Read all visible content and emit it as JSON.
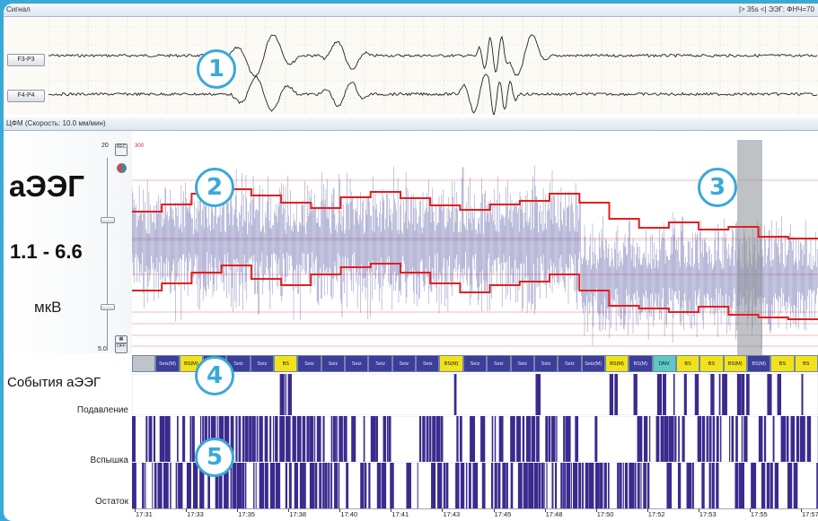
{
  "signal_panel": {
    "title": "Сигнал",
    "status": "|> 35s <|  ЭЭГ: ФНЧ=70",
    "channels": [
      "F3-P3",
      "F4-P4"
    ]
  },
  "cfm_panel": {
    "title": "ЦФМ (Скорость: 10.0 мм/мин)",
    "label": "аЭЭГ",
    "range": "1.1 - 6.6",
    "unit": "мкВ",
    "scale_top": "20",
    "scale_bottom": "5.0",
    "axis_max": "300",
    "btn_top": "REC",
    "btn_bottom": "OFF"
  },
  "events": {
    "label": "События аЭЭГ",
    "items": [
      {
        "label": "",
        "type": "gray"
      },
      {
        "label": "Seiz(M)",
        "type": "blue"
      },
      {
        "label": "BS(M)",
        "type": "yellow"
      },
      {
        "label": "Seiz",
        "type": "blue"
      },
      {
        "label": "Seiz",
        "type": "blue"
      },
      {
        "label": "Seiz",
        "type": "blue"
      },
      {
        "label": "BS",
        "type": "yellow"
      },
      {
        "label": "Seiz",
        "type": "blue"
      },
      {
        "label": "Seiz",
        "type": "blue"
      },
      {
        "label": "Seiz",
        "type": "blue"
      },
      {
        "label": "Seiz",
        "type": "blue"
      },
      {
        "label": "Seiz",
        "type": "blue"
      },
      {
        "label": "Seiz",
        "type": "blue"
      },
      {
        "label": "BS(M)",
        "type": "yellow"
      },
      {
        "label": "Seiz",
        "type": "blue"
      },
      {
        "label": "Seiz",
        "type": "blue"
      },
      {
        "label": "Seiz",
        "type": "blue"
      },
      {
        "label": "Seiz",
        "type": "blue"
      },
      {
        "label": "Seiz",
        "type": "blue"
      },
      {
        "label": "Seiz(M)",
        "type": "blue"
      },
      {
        "label": "BS(M)",
        "type": "yellow"
      },
      {
        "label": "BS(M)",
        "type": "blue"
      },
      {
        "label": "DNV",
        "type": "teal"
      },
      {
        "label": "BS",
        "type": "yellow"
      },
      {
        "label": "BS",
        "type": "yellow"
      },
      {
        "label": "BS(M)",
        "type": "yellow"
      },
      {
        "label": "BS(M)",
        "type": "blue"
      },
      {
        "label": "BS",
        "type": "yellow"
      },
      {
        "label": "BS",
        "type": "yellow"
      }
    ]
  },
  "rows": [
    "Подавление",
    "Вспышка",
    "Остаток"
  ],
  "time_axis": [
    "17:31",
    "17:33",
    "17:35",
    "17:38",
    "17:40",
    "17:41",
    "17:43",
    "17:45",
    "17:48",
    "17:50",
    "17:52",
    "17:53",
    "17:55",
    "17:57"
  ],
  "markers": [
    "1",
    "2",
    "3",
    "4",
    "5"
  ],
  "colors": {
    "accent": "#3aa9d8",
    "trace": "#2a2a8a",
    "margin_line": "#e02020",
    "event_blue": "#3d3d9a",
    "event_yellow": "#f2e21c",
    "event_teal": "#5fc6c6"
  }
}
